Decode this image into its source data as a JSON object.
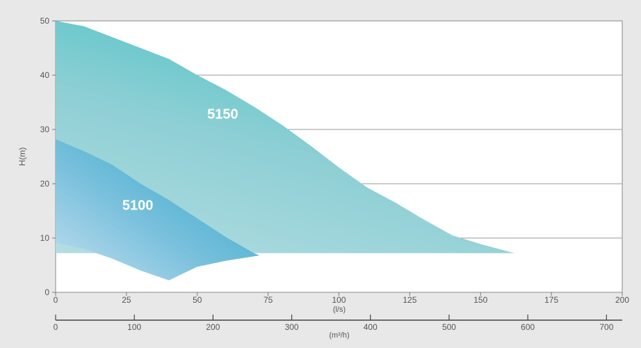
{
  "chart_data": {
    "type": "area",
    "ylabel": "H(m)",
    "xunit_primary": "(l/s)",
    "xunit_secondary": "(m³/h)",
    "xlim": [
      0,
      200
    ],
    "ylim": [
      0,
      50
    ],
    "secondary_xlim": [
      0,
      720
    ],
    "x_ticks": [
      0,
      25,
      50,
      75,
      100,
      125,
      150,
      175,
      200
    ],
    "y_ticks": [
      0,
      10,
      20,
      30,
      40,
      50
    ],
    "secondary_x_ticks": [
      0,
      100,
      200,
      300,
      400,
      500,
      600,
      700
    ],
    "grid": "horizontal",
    "series": [
      {
        "name": "5150",
        "color": "#4fc3c6",
        "light_color": "#a9d8dc",
        "label_at": [
          59,
          32
        ],
        "outline": [
          [
            0,
            50
          ],
          [
            10,
            49
          ],
          [
            20,
            47
          ],
          [
            30,
            45
          ],
          [
            40,
            43
          ],
          [
            50,
            40
          ],
          [
            60,
            37.3
          ],
          [
            70,
            34.2
          ],
          [
            80,
            30.8
          ],
          [
            90,
            27
          ],
          [
            100,
            23
          ],
          [
            110,
            19.3
          ],
          [
            120,
            16.5
          ],
          [
            130,
            13.4
          ],
          [
            140,
            10.5
          ],
          [
            150,
            8.9
          ],
          [
            162,
            7.2
          ],
          [
            0,
            7.2
          ]
        ]
      },
      {
        "name": "5100",
        "color": "#3fb0c8",
        "light_color": "#b7d8ea",
        "label_at": [
          29,
          15.2
        ],
        "outline": [
          [
            0,
            28.2
          ],
          [
            10,
            26
          ],
          [
            20,
            23.5
          ],
          [
            30,
            20
          ],
          [
            40,
            17
          ],
          [
            50,
            13.6
          ],
          [
            60,
            10.2
          ],
          [
            70,
            7.2
          ],
          [
            72,
            6.8
          ],
          [
            60,
            5.8
          ],
          [
            50,
            4.7
          ],
          [
            40,
            2.2
          ],
          [
            30,
            4
          ],
          [
            20,
            6.2
          ],
          [
            10,
            8
          ],
          [
            0,
            9.2
          ]
        ]
      }
    ]
  }
}
